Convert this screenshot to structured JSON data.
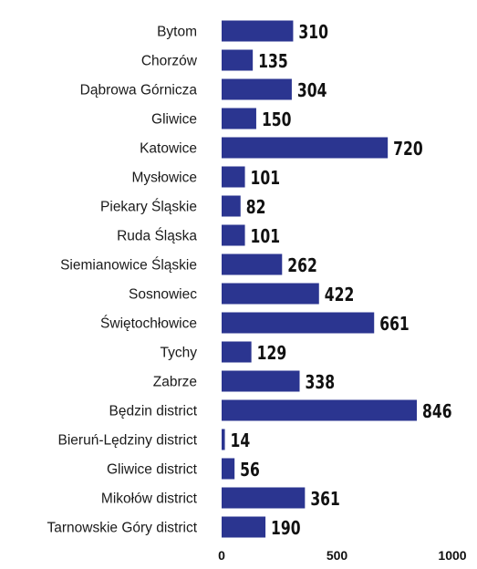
{
  "chart_data": {
    "type": "bar",
    "orientation": "horizontal",
    "title": "",
    "xlabel": "",
    "ylabel": "",
    "categories": [
      "Bytom",
      "Chorzów",
      "Dąbrowa Górnicza",
      "Gliwice",
      "Katowice",
      "Mysłowice",
      "Piekary Śląskie",
      "Ruda Śląska",
      "Siemianowice Śląskie",
      "Sosnowiec",
      "Świętochłowice",
      "Tychy",
      "Zabrze",
      "Będzin district",
      "Bieruń-Lędziny district",
      "Gliwice district",
      "Mikołów district",
      "Tarnowskie Góry district"
    ],
    "values": [
      310,
      135,
      304,
      150,
      720,
      101,
      82,
      101,
      262,
      422,
      661,
      129,
      338,
      846,
      14,
      56,
      361,
      190
    ],
    "value_labels": [
      "310",
      "135",
      "304",
      "150",
      "720",
      "101",
      "82",
      "101",
      "262",
      "422",
      "661",
      "129",
      "338",
      "846",
      "14",
      "56",
      "361",
      "190"
    ],
    "xlim": [
      0,
      1000
    ],
    "xticks": [
      0,
      500,
      1000
    ],
    "xtick_labels": [
      "0",
      "500",
      "1000"
    ],
    "grid": false,
    "legend": false,
    "bar_color": "#2b3590"
  }
}
